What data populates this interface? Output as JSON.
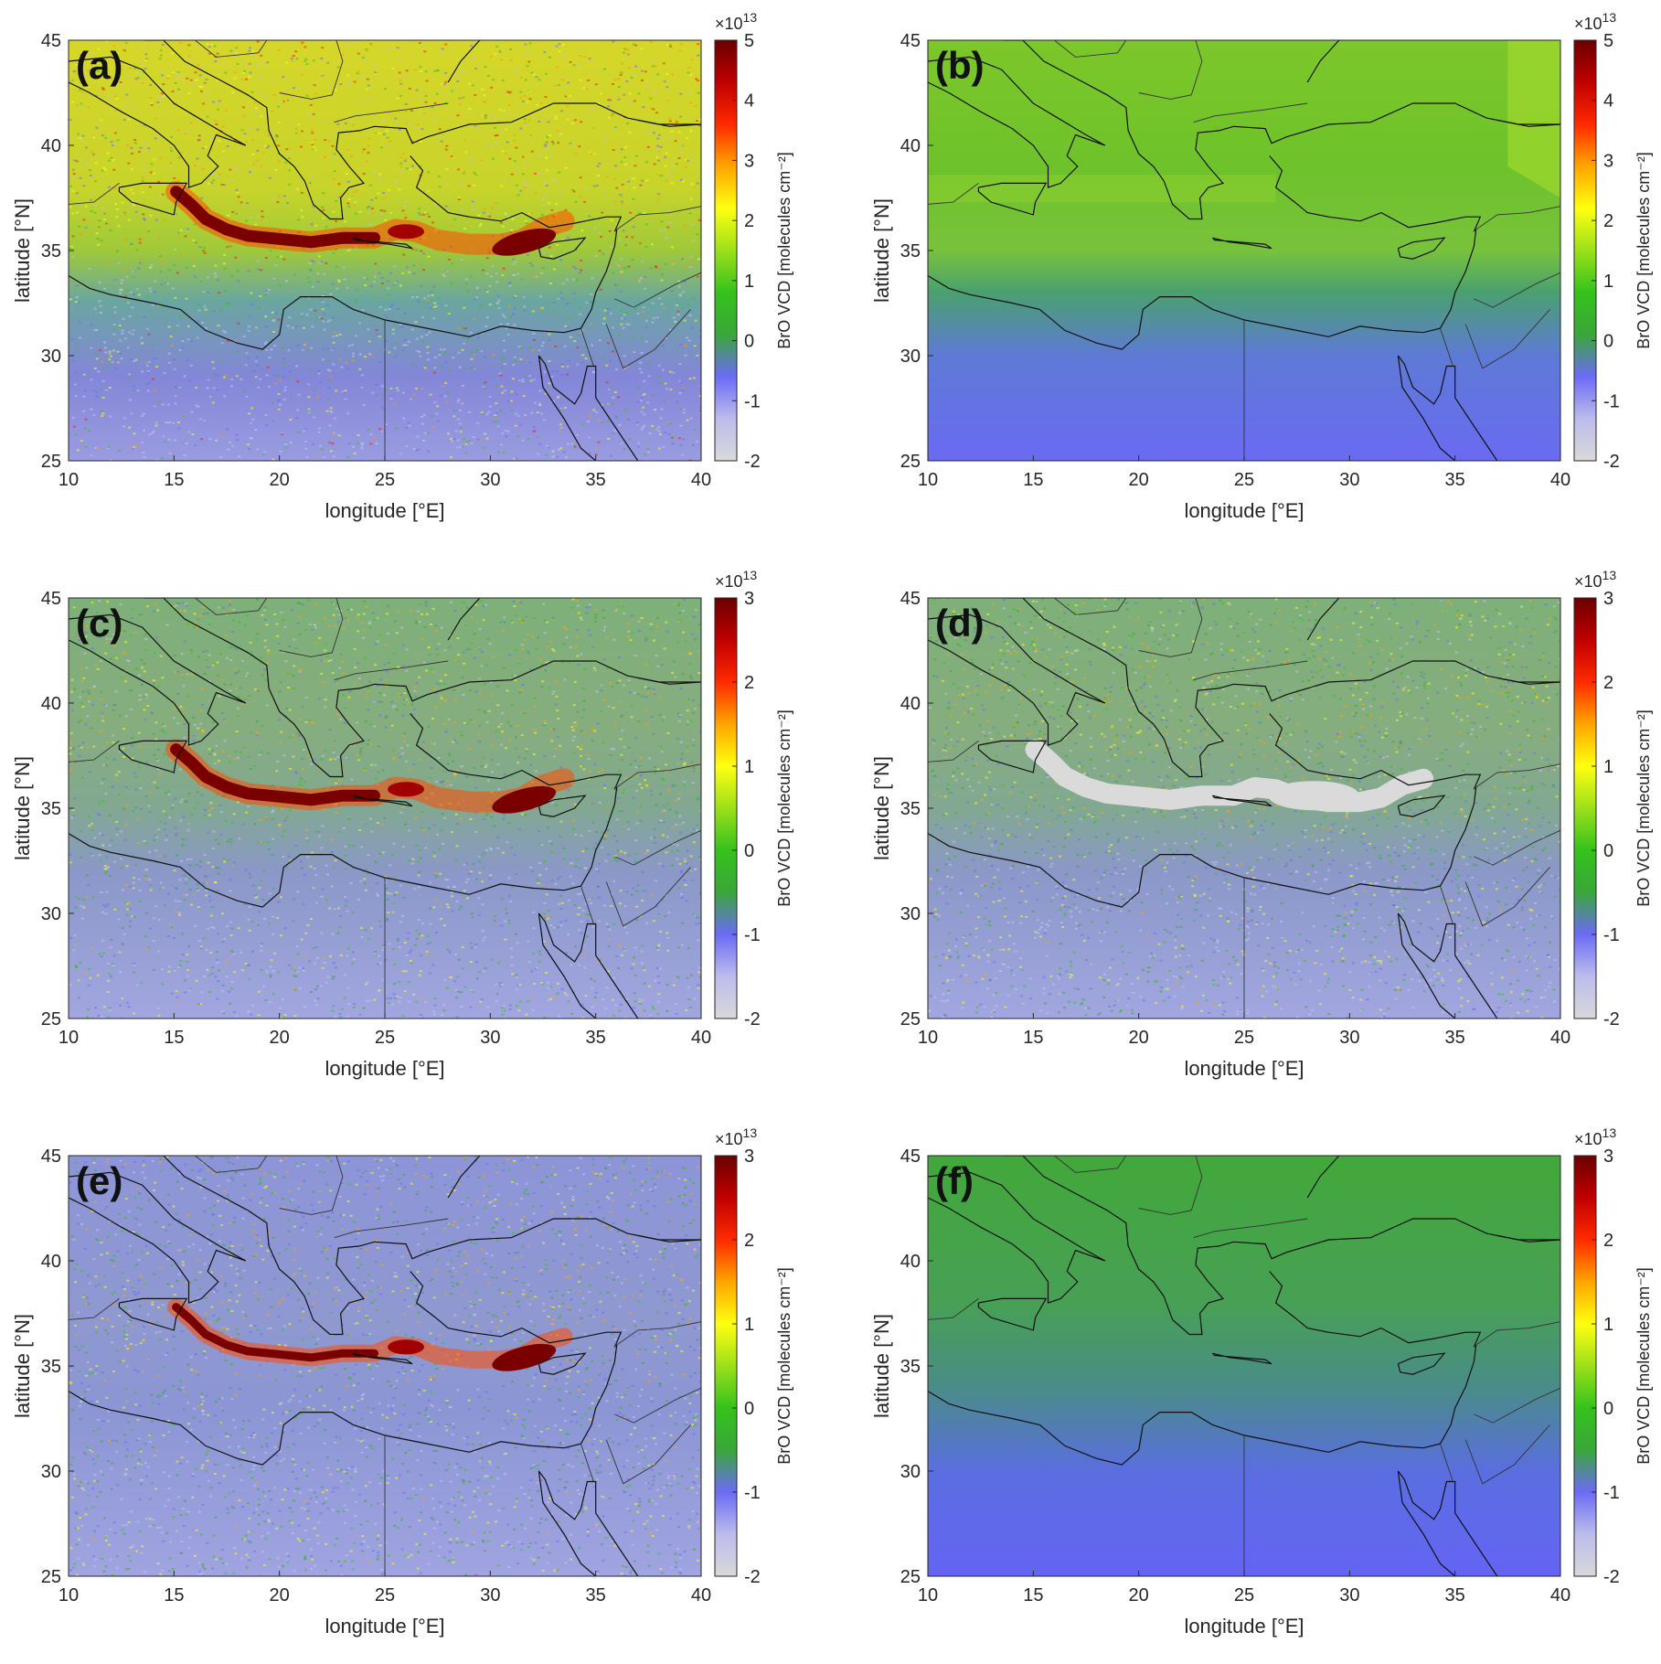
{
  "axes": {
    "xlabel": "longitude [°E]",
    "ylabel": "latitude [°N]",
    "xticks": [
      "10",
      "15",
      "20",
      "25",
      "30",
      "35",
      "40"
    ],
    "yticks": [
      "45",
      "40",
      "35",
      "30",
      "25"
    ],
    "xlim": [
      10,
      40
    ],
    "ylim": [
      25,
      45
    ]
  },
  "colorbar": {
    "label": "BrO VCD [molecules cm⁻²]",
    "exponent_base": "×10",
    "exponent": "13"
  },
  "panels": [
    {
      "label": "(a)",
      "cticks": [
        "5",
        "4",
        "3",
        "2",
        "1",
        "0",
        "-1",
        "-2"
      ],
      "crange": [
        -2,
        5
      ],
      "style": "noisy-high"
    },
    {
      "label": "(b)",
      "cticks": [
        "5",
        "4",
        "3",
        "2",
        "1",
        "0",
        "-1",
        "-2"
      ],
      "crange": [
        -2,
        5
      ],
      "style": "smooth-high"
    },
    {
      "label": "(c)",
      "cticks": [
        "3",
        "2",
        "1",
        "0",
        "-1",
        "-2"
      ],
      "crange": [
        -2,
        3
      ],
      "style": "noisy-plume"
    },
    {
      "label": "(d)",
      "cticks": [
        "3",
        "2",
        "1",
        "0",
        "-1",
        "-2"
      ],
      "crange": [
        -2,
        3
      ],
      "style": "noisy-masked"
    },
    {
      "label": "(e)",
      "cticks": [
        "3",
        "2",
        "1",
        "0",
        "-1",
        "-2"
      ],
      "crange": [
        -2,
        3
      ],
      "style": "noisy-low"
    },
    {
      "label": "(f)",
      "cticks": [
        "3",
        "2",
        "1",
        "0",
        "-1",
        "-2"
      ],
      "crange": [
        -2,
        3
      ],
      "style": "smooth-gradient"
    }
  ],
  "colors": {
    "colormap": [
      "#d9d9d9",
      "#bcbcec",
      "#6b6bf5",
      "#3aa63a",
      "#35c21c",
      "#9be01a",
      "#ffff10",
      "#ffa500",
      "#ff2a00",
      "#c00000",
      "#6b0000"
    ],
    "plume": "#7a0000",
    "mask": "#dadada",
    "coast": "#111111"
  }
}
